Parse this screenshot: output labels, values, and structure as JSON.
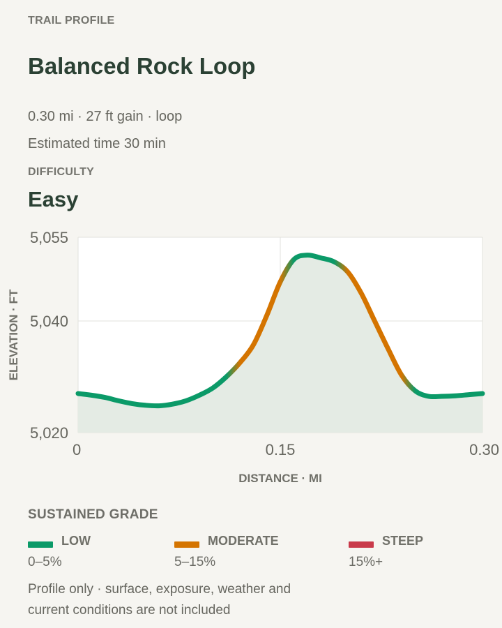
{
  "header": {
    "eyebrow": "TRAIL PROFILE",
    "title": "Balanced Rock Loop",
    "summary": "0.30 mi · 27 ft gain · loop",
    "estimated_time": "Estimated time 30 min"
  },
  "difficulty": {
    "label": "DIFFICULTY",
    "value": "Easy"
  },
  "chart_data": {
    "type": "area",
    "xlabel": "DISTANCE · MI",
    "ylabel": "ELEVATION · FT",
    "xlim": [
      0,
      0.3
    ],
    "ylim": [
      5020,
      5055
    ],
    "xticks": [
      0,
      0.15,
      0.3
    ],
    "xtick_labels": [
      "0",
      "0.15",
      "0.30"
    ],
    "yticks": [
      5020,
      5040,
      5055
    ],
    "ytick_labels": [
      "5,020",
      "5,040",
      "5,055"
    ],
    "grid": true,
    "x": [
      0,
      0.01,
      0.02,
      0.03,
      0.04,
      0.05,
      0.06,
      0.07,
      0.08,
      0.09,
      0.1,
      0.11,
      0.12,
      0.13,
      0.14,
      0.15,
      0.16,
      0.17,
      0.18,
      0.19,
      0.2,
      0.21,
      0.22,
      0.23,
      0.24,
      0.25,
      0.26,
      0.27,
      0.28,
      0.29,
      0.3
    ],
    "y": [
      5027.0,
      5026.7,
      5026.3,
      5025.7,
      5025.2,
      5024.9,
      5024.8,
      5025.1,
      5025.7,
      5026.7,
      5028.0,
      5030.0,
      5032.5,
      5035.7,
      5041.0,
      5047.0,
      5051.0,
      5051.8,
      5051.3,
      5050.6,
      5048.8,
      5045.0,
      5040.0,
      5035.0,
      5030.3,
      5027.5,
      5026.5,
      5026.5,
      5026.6,
      5026.8,
      5027.0
    ],
    "grade": [
      "low",
      "low",
      "low",
      "low",
      "low",
      "low",
      "low",
      "low",
      "low",
      "low",
      "low",
      "low",
      "moderate",
      "moderate",
      "moderate",
      "moderate",
      "low",
      "low",
      "low",
      "low",
      "moderate",
      "moderate",
      "moderate",
      "moderate",
      "moderate",
      "low",
      "low",
      "low",
      "low",
      "low",
      "low"
    ]
  },
  "legend": {
    "heading": "SUSTAINED GRADE",
    "items": [
      {
        "name": "LOW",
        "range": "0–5%",
        "color": "#0b9a68"
      },
      {
        "name": "MODERATE",
        "range": "5–15%",
        "color": "#d47400"
      },
      {
        "name": "STEEP",
        "range": "15%+",
        "color": "#c93a4a"
      }
    ]
  },
  "colors": {
    "area_fill": "#e4ebe4",
    "plot_bg": "#ffffff",
    "grid": "#e2e2dc"
  },
  "footnote": "Profile only · surface, exposure, weather and current conditions are not included"
}
